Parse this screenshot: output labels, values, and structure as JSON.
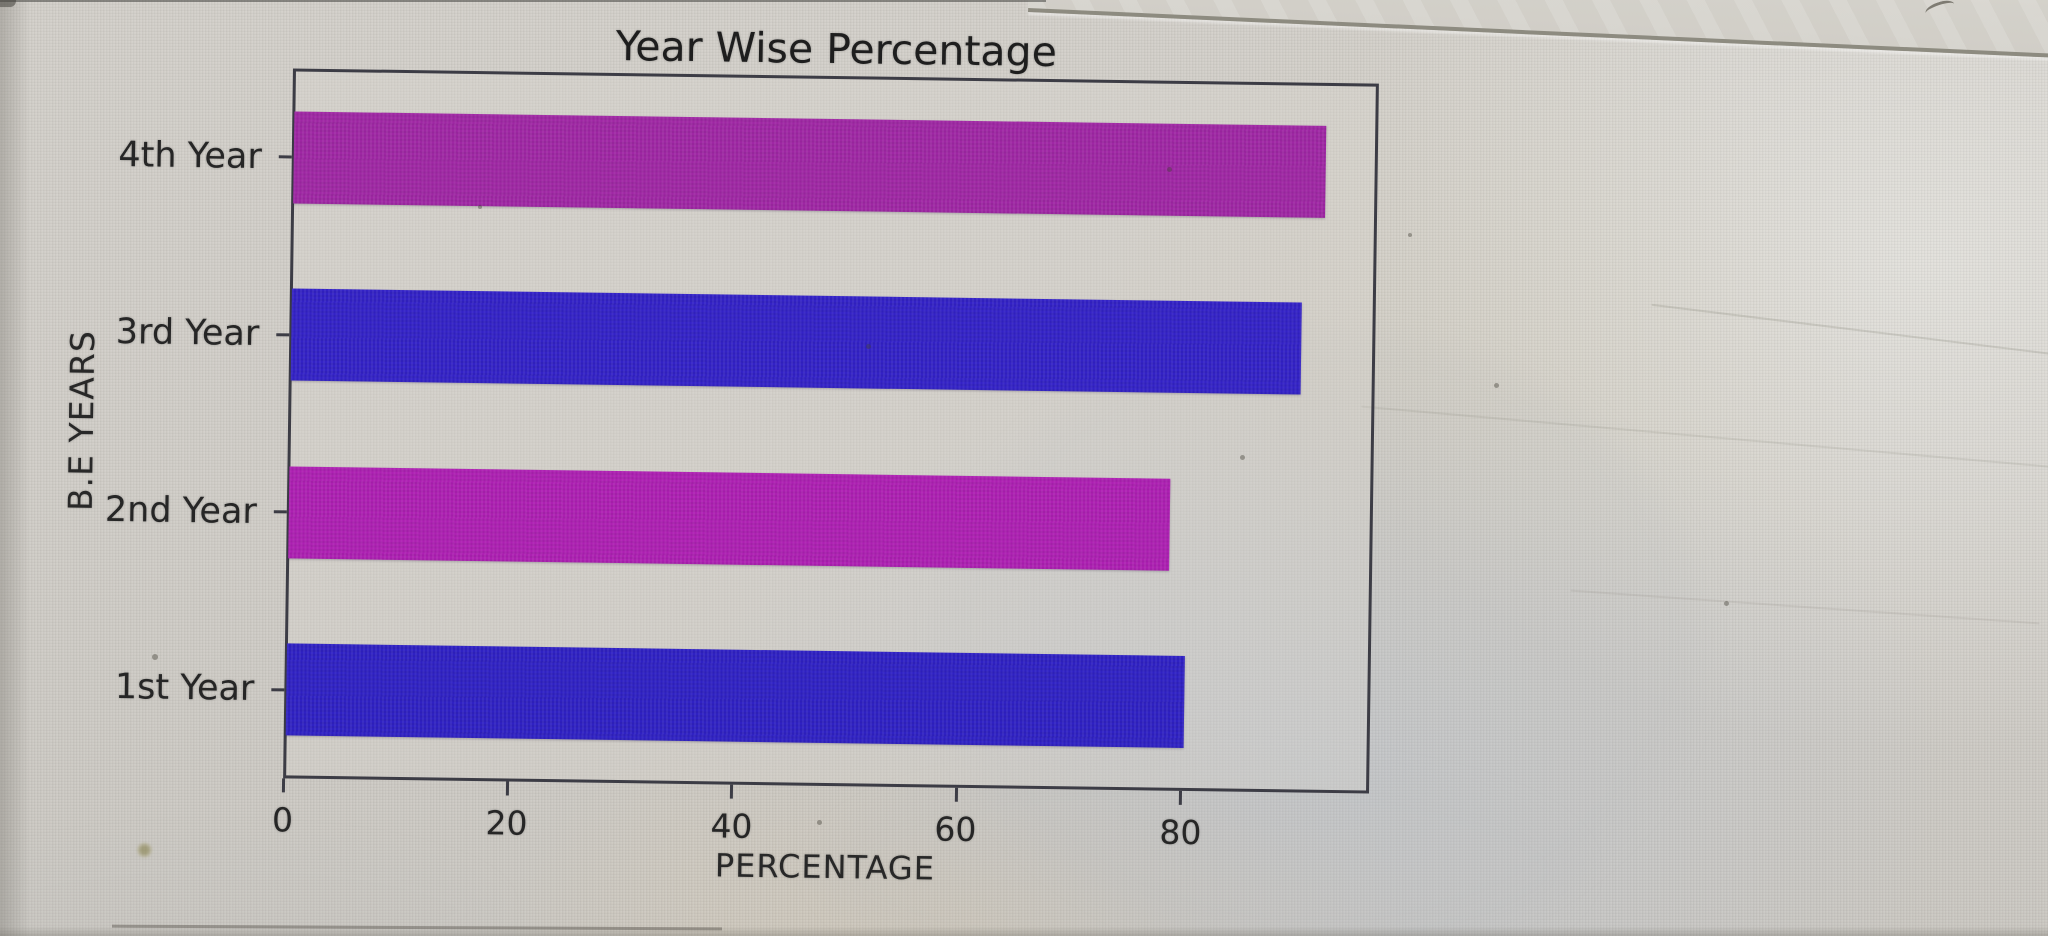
{
  "chart_data": {
    "type": "bar",
    "orientation": "horizontal",
    "title": "Year Wise Percentage",
    "xlabel": "PERCENTAGE",
    "ylabel": "B.E YEARS",
    "categories": [
      "1st Year",
      "2nd Year",
      "3rd Year",
      "4th Year"
    ],
    "values": [
      80,
      78.5,
      90,
      92
    ],
    "bar_colors": [
      "#2f21c3",
      "#ad20b2",
      "#3322c6",
      "#9f27a4"
    ],
    "y_axis_direction": "first-category-at-bottom",
    "xticks": [
      0,
      20,
      40,
      60,
      80
    ],
    "xlim": [
      0,
      96.8
    ],
    "grid": false,
    "legend": null,
    "text_color": "#262626",
    "spine_color": "#3c3c45"
  }
}
